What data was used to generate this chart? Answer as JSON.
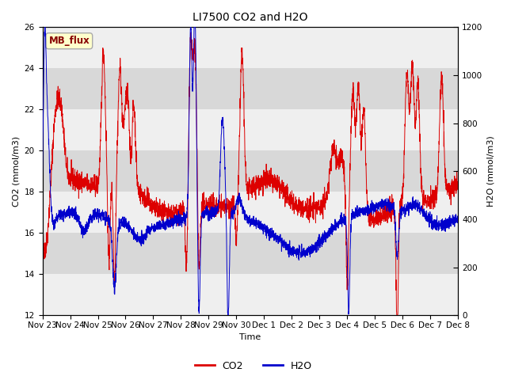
{
  "title": "LI7500 CO2 and H2O",
  "xlabel": "Time",
  "ylabel_left": "CO2 (mmol/m3)",
  "ylabel_right": "H2O (mmol/m3)",
  "ylim_left": [
    12,
    26
  ],
  "ylim_right": [
    0,
    1200
  ],
  "yticks_left": [
    12,
    14,
    16,
    18,
    20,
    22,
    24,
    26
  ],
  "yticks_right": [
    0,
    200,
    400,
    600,
    800,
    1000,
    1200
  ],
  "co2_color": "#dd0000",
  "h2o_color": "#0000cc",
  "background_color": "#ffffff",
  "plot_bg_color": "#d8d8d8",
  "band_color": "#efefef",
  "label_box_text": "MB_flux",
  "label_box_facecolor": "#ffffcc",
  "label_box_edgecolor": "#aaaaaa",
  "label_box_textcolor": "#880000",
  "legend_co2": "CO2",
  "legend_h2o": "H2O",
  "title_fontsize": 10,
  "axis_fontsize": 8,
  "tick_fontsize": 7.5,
  "legend_fontsize": 9,
  "tick_labels": [
    "Nov 23",
    "Nov 24",
    "Nov 25",
    "Nov 26",
    "Nov 27",
    "Nov 28",
    "Nov 29",
    "Nov 30",
    "Dec 1",
    "Dec 2",
    "Dec 3",
    "Dec 4",
    "Dec 5",
    "Dec 6",
    "Dec 7",
    "Dec 8"
  ],
  "num_points": 3000,
  "seed": 42
}
